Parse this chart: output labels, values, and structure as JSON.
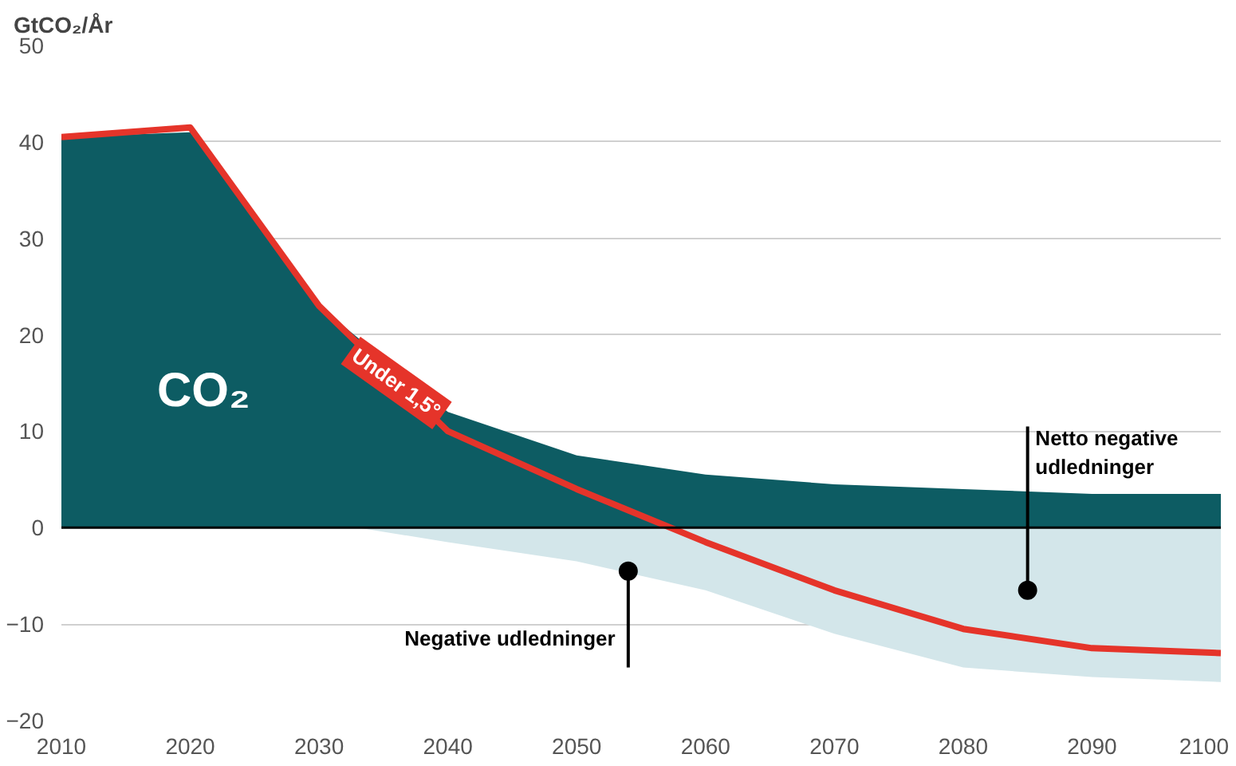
{
  "chart_data": {
    "type": "area",
    "ylabel": "GtCO₂/År",
    "x": [
      2010,
      2020,
      2030,
      2040,
      2050,
      2060,
      2070,
      2080,
      2090,
      2100
    ],
    "series": [
      {
        "color": "#0d5c63",
        "values": [
          40.5,
          41,
          23,
          12,
          7.5,
          5.5,
          4.5,
          4,
          3.5,
          3.5
        ]
      },
      {
        "color": "#d3e6ea",
        "x": [
          2033,
          2040,
          2050,
          2060,
          2070,
          2080,
          2090,
          2100
        ],
        "values": [
          0,
          -1.5,
          -3.5,
          -6.5,
          -11,
          -14.5,
          -15.5,
          -16
        ]
      },
      {
        "type": "line",
        "color": "#e5342a",
        "values": [
          40.5,
          41.5,
          23,
          10,
          4,
          -1.5,
          -6.5,
          -10.5,
          -12.5,
          -13
        ]
      }
    ],
    "xlim": [
      2010,
      2100
    ],
    "xticks": [
      2010,
      2020,
      2030,
      2040,
      2050,
      2060,
      2070,
      2080,
      2090,
      2100
    ],
    "ylim": [
      -20,
      50
    ],
    "yticks": [
      -20,
      -10,
      0,
      10,
      20,
      30,
      40,
      50
    ],
    "grid": "y",
    "ref_lines": [
      {
        "axis": "y",
        "value": 0,
        "color": "#000000"
      }
    ],
    "annotations": [
      "CO₂",
      {
        "text": "Under 1,5°",
        "x": 2036,
        "y": 15
      },
      {
        "text": "Netto negative udledninger",
        "x": 2085,
        "y": -6.5
      },
      {
        "text": "Negative udledninger",
        "x": 2054,
        "y": -4.5
      }
    ]
  }
}
